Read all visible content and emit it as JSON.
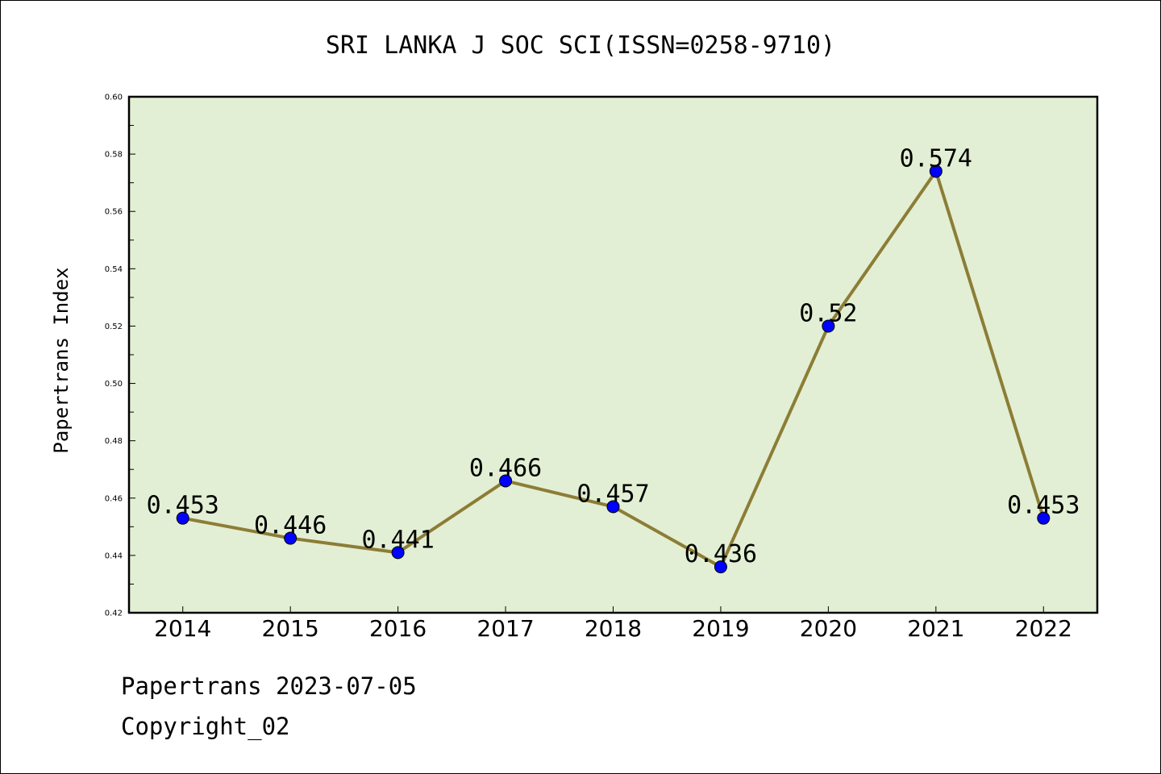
{
  "chart_data": {
    "type": "line",
    "title": "SRI LANKA J SOC SCI(ISSN=0258-9710)",
    "ylabel": "Papertrans Index",
    "xlabel": "",
    "categories": [
      "2014",
      "2015",
      "2016",
      "2017",
      "2018",
      "2019",
      "2020",
      "2021",
      "2022"
    ],
    "values": [
      0.453,
      0.446,
      0.441,
      0.466,
      0.457,
      0.436,
      0.52,
      0.574,
      0.453
    ],
    "data_labels": [
      "0.453",
      "0.446",
      "0.441",
      "0.466",
      "0.457",
      "0.436",
      "0.52",
      "0.574",
      "0.453"
    ],
    "ylim": [
      0.42,
      0.6
    ],
    "yticks": [
      "0.42",
      "0.44",
      "0.46",
      "0.48",
      "0.50",
      "0.52",
      "0.54",
      "0.56",
      "0.58",
      "0.60"
    ],
    "colors": {
      "plot_bg": "#e2efd4",
      "line": "#8c7d36",
      "marker": "#0000ff"
    },
    "grid": false,
    "legend": "none"
  },
  "footer": {
    "line1": "Papertrans 2023-07-05",
    "line2": "Copyright_02"
  }
}
